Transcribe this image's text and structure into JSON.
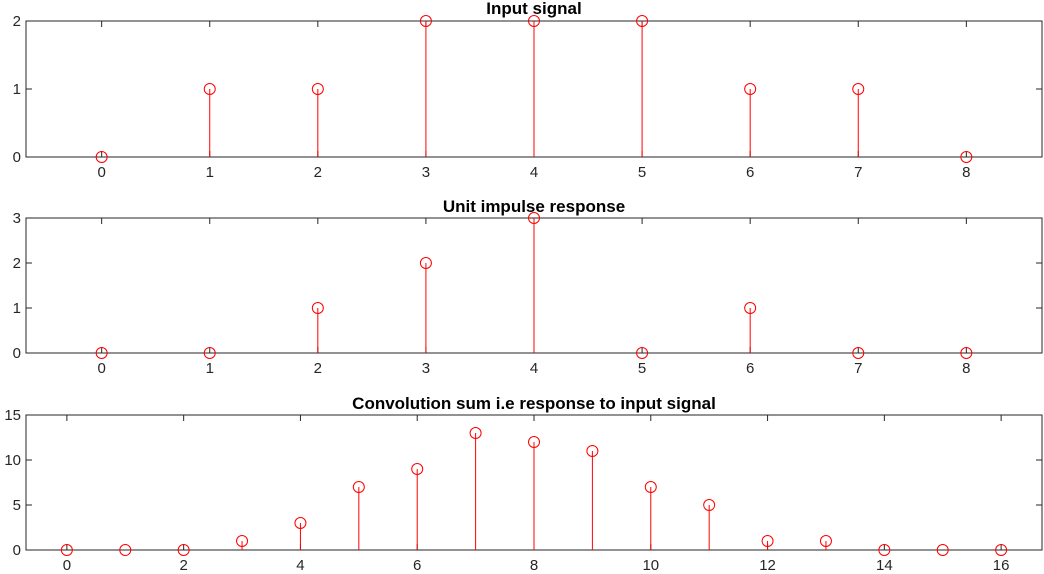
{
  "chart_data": [
    {
      "type": "stem",
      "title": "Input signal",
      "xlabel": "",
      "ylabel": "",
      "x": [
        0,
        1,
        2,
        3,
        4,
        5,
        6,
        7,
        8
      ],
      "values": [
        0,
        1,
        1,
        2,
        2,
        2,
        1,
        1,
        0
      ],
      "xlim": [
        -0.7,
        8.7
      ],
      "ylim": [
        0,
        2
      ],
      "xticks": [
        0,
        1,
        2,
        3,
        4,
        5,
        6,
        7,
        8
      ],
      "yticks": [
        0,
        1,
        2
      ],
      "color": "#ff0000",
      "marker": "circle",
      "grid": false
    },
    {
      "type": "stem",
      "title": "Unit impulse response",
      "xlabel": "",
      "ylabel": "",
      "x": [
        0,
        1,
        2,
        3,
        4,
        5,
        6,
        7,
        8
      ],
      "values": [
        0,
        0,
        1,
        2,
        3,
        0,
        1,
        0,
        0
      ],
      "xlim": [
        -0.7,
        8.7
      ],
      "ylim": [
        0,
        3
      ],
      "xticks": [
        0,
        1,
        2,
        3,
        4,
        5,
        6,
        7,
        8
      ],
      "yticks": [
        0,
        1,
        2,
        3
      ],
      "color": "#ff0000",
      "marker": "circle",
      "grid": false
    },
    {
      "type": "stem",
      "title": "Convolution sum i.e response to input signal",
      "xlabel": "",
      "ylabel": "",
      "x": [
        0,
        1,
        2,
        3,
        4,
        5,
        6,
        7,
        8,
        9,
        10,
        11,
        12,
        13,
        14,
        15,
        16
      ],
      "values": [
        0,
        0,
        0,
        1,
        3,
        7,
        9,
        13,
        12,
        11,
        7,
        5,
        1,
        1,
        0,
        0,
        0
      ],
      "xlim": [
        -0.7,
        16.7
      ],
      "ylim": [
        0,
        15
      ],
      "xticks": [
        0,
        2,
        4,
        6,
        8,
        10,
        12,
        14,
        16
      ],
      "yticks": [
        0,
        5,
        10,
        15
      ],
      "color": "#ff0000",
      "marker": "circle",
      "grid": false
    }
  ]
}
